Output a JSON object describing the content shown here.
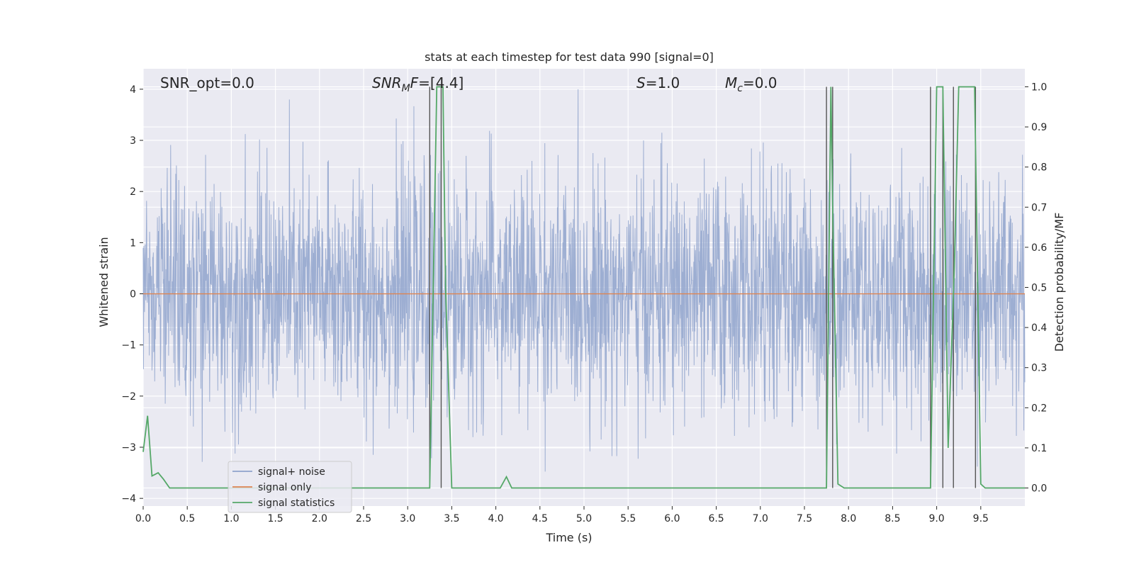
{
  "chart_data": {
    "type": "line",
    "title": "stats at each timestep for test data 990 [signal=0]",
    "xlabel": "Time (s)",
    "ylabel_left": "Whitened strain",
    "ylabel_right": "Detection probability/MF",
    "xlim": [
      0.0,
      10.0
    ],
    "ylim_left": [
      -4.15,
      4.4
    ],
    "ylim_right": [
      -0.045,
      1.045
    ],
    "x_ticks": [
      "0.0",
      "0.5",
      "1.0",
      "1.5",
      "2.0",
      "2.5",
      "3.0",
      "3.5",
      "4.0",
      "4.5",
      "5.0",
      "5.5",
      "6.0",
      "6.5",
      "7.0",
      "7.5",
      "8.0",
      "8.5",
      "9.0",
      "9.5"
    ],
    "y_left_ticks": [
      "4",
      "3",
      "2",
      "1",
      "0",
      "−1",
      "−2",
      "−3",
      "−4"
    ],
    "y_right_ticks": [
      "1.0",
      "0.9",
      "0.8",
      "0.7",
      "0.6",
      "0.5",
      "0.4",
      "0.3",
      "0.2",
      "0.1",
      "0.0"
    ],
    "grid": true,
    "legend_position": "lower-left",
    "annotations": [
      {
        "text": "SNR_opt=0.0"
      },
      {
        "text": "SNR_MF=[4.4]"
      },
      {
        "text": "S=1.0"
      },
      {
        "text": "M_c=0.0"
      }
    ],
    "series": [
      {
        "name": "signal+ noise",
        "color": "#8fa3cc",
        "axis": "left",
        "description_values": "random whitened noise, amplitude roughly within [-4, 4]"
      },
      {
        "name": "signal only",
        "color": "#dd8452",
        "axis": "left",
        "x": [
          0.0,
          10.0
        ],
        "y": [
          0.0,
          0.0
        ]
      },
      {
        "name": "signal statistics",
        "color": "#55a868",
        "axis": "right",
        "x": [
          0.0,
          0.05,
          0.1,
          0.17,
          0.23,
          0.3,
          0.31,
          3.25,
          3.33,
          3.4,
          3.43,
          3.5,
          4.05,
          4.12,
          4.18,
          7.75,
          7.8,
          7.82,
          7.88,
          7.95,
          8.93,
          9.0,
          9.07,
          9.13,
          9.2,
          9.25,
          9.43,
          9.5,
          9.55,
          10.0
        ],
        "y": [
          0.09,
          0.18,
          0.03,
          0.038,
          0.022,
          0.0,
          0.0,
          0.0,
          1.0,
          1.0,
          0.5,
          0.0,
          0.0,
          0.028,
          0.0,
          0.0,
          1.0,
          0.7,
          0.01,
          0.0,
          0.0,
          1.0,
          1.0,
          0.1,
          0.55,
          1.0,
          1.0,
          0.01,
          0.0,
          0.0
        ]
      }
    ],
    "vertical_markers": [
      3.25,
      3.38,
      7.75,
      7.82,
      8.93,
      9.07,
      9.19,
      9.44
    ]
  }
}
